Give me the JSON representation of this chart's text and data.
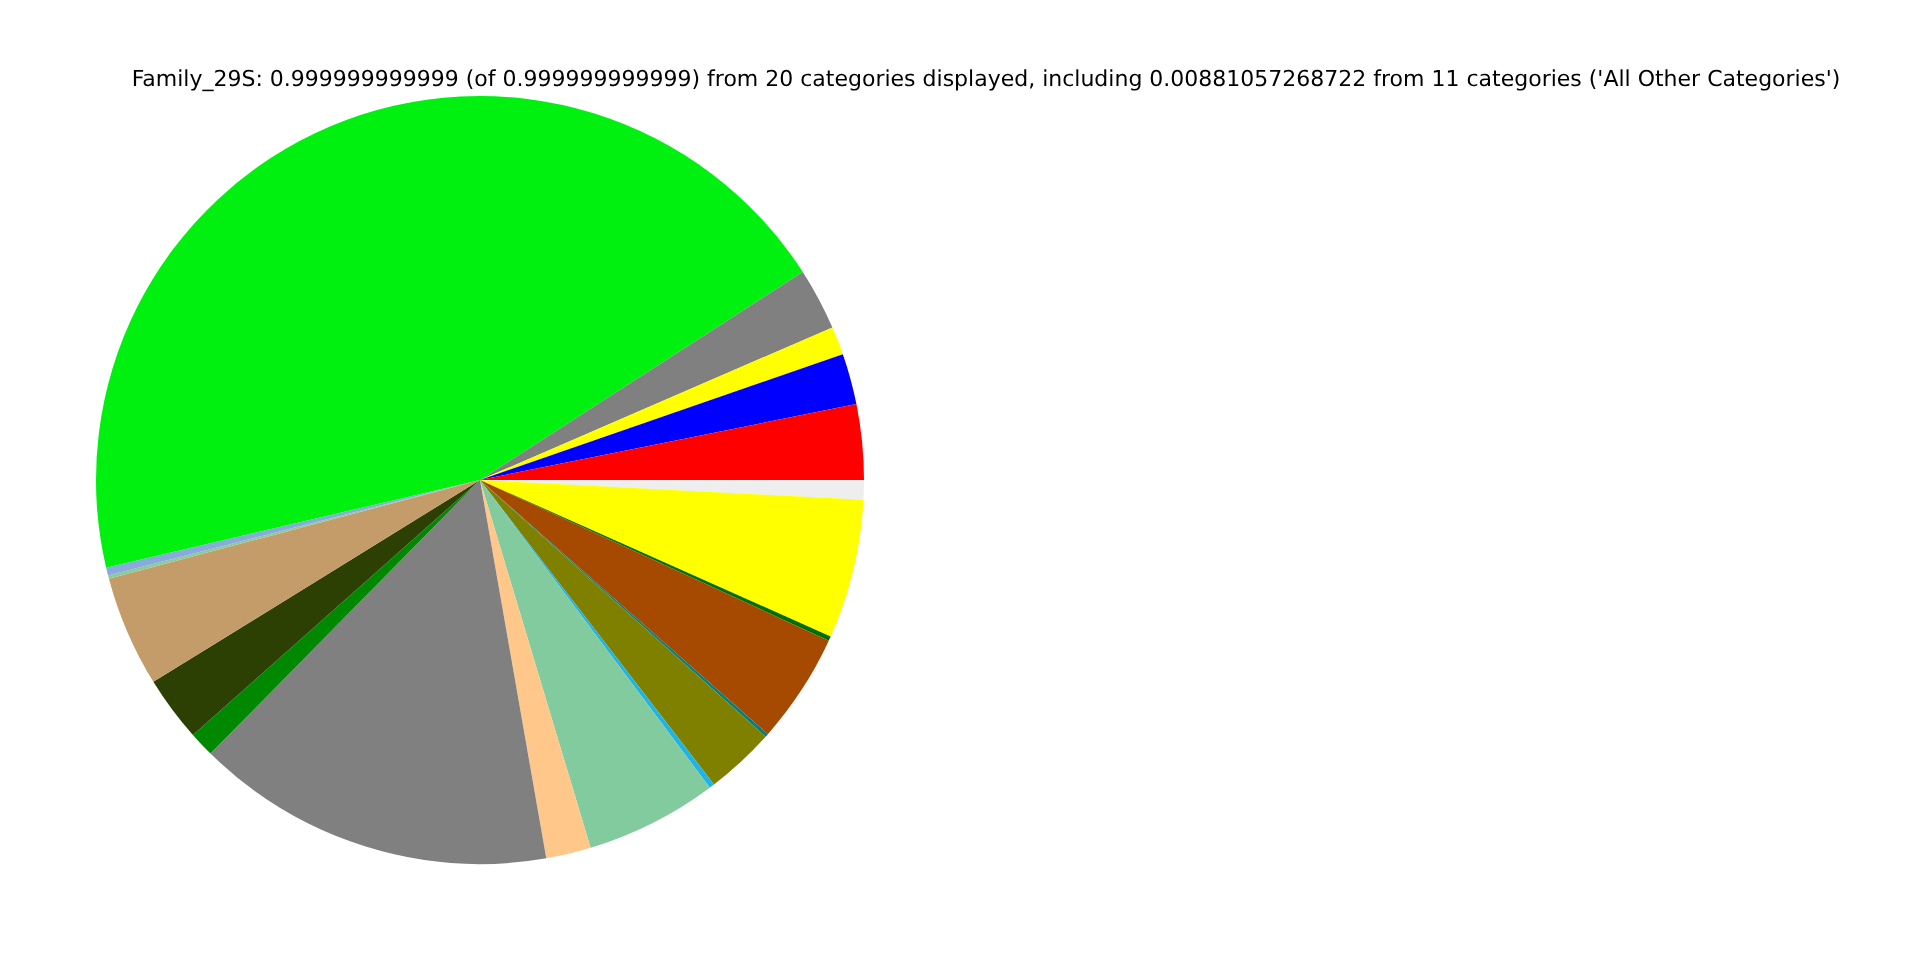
{
  "chart_data": {
    "type": "pie",
    "title": "Family_29S: 0.999999999999 (of 0.999999999999) from 20 categories displayed, including 0.00881057268722 from 11 categories ('All Other Categories')",
    "categories": [
      null,
      null,
      null,
      null,
      null,
      null,
      null,
      null,
      null,
      null,
      null,
      null,
      null,
      null,
      null,
      null,
      null,
      null,
      null,
      null
    ],
    "values": [
      0.82,
      5.86,
      0.19,
      4.64,
      0.14,
      2.92,
      0.22,
      5.56,
      1.89,
      15.14,
      1.06,
      2.75,
      4.67,
      0.14,
      0.33,
      44.56,
      2.61,
      1.19,
      2.14,
      3.17
    ],
    "colors": [
      "#eeeeee",
      "#ffff00",
      "#007000",
      "#a54a00",
      "#008080",
      "#808000",
      "#1eb4e6",
      "#82cb9e",
      "#ffc88a",
      "#808080",
      "#008800",
      "#2c4004",
      "#c49c6a",
      "#88cc99",
      "#88aadd",
      "#00f010",
      "#808080",
      "#ffff00",
      "#0000ff",
      "#ff0000"
    ],
    "legend": false
  }
}
